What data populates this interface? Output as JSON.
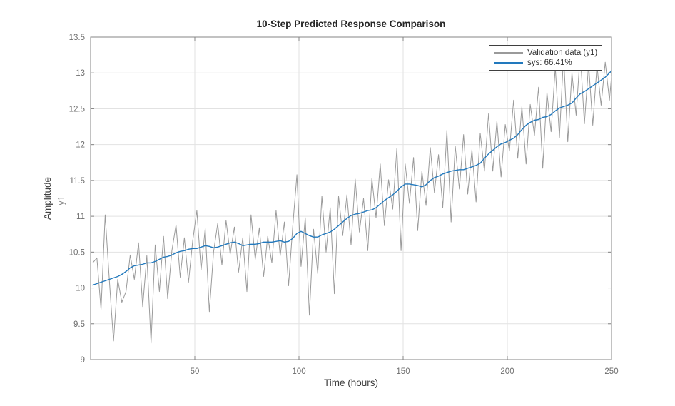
{
  "figure": {
    "title": "10-Step Predicted Response Comparison",
    "xlabel": "Time (hours)",
    "ylabel": "Amplitude",
    "channel": "y1"
  },
  "colors": {
    "validation_line": "#9a9a9a",
    "sys_line": "#2279bd",
    "grid": "#e2e2e2",
    "axis_border": "#848484",
    "tick_label": "#6e6e6e",
    "legend_border": "#3f3f3f",
    "background": "#ffffff"
  },
  "chart_data": {
    "type": "line",
    "title": "10-Step Predicted Response Comparison",
    "xlabel": "Time (hours)",
    "ylabel": "Amplitude",
    "channel": "y1",
    "xlim": [
      0,
      250
    ],
    "ylim": [
      9,
      13.5
    ],
    "xticks": [
      50,
      100,
      150,
      200,
      250
    ],
    "yticks": [
      9,
      9.5,
      10,
      10.5,
      11,
      11.5,
      12,
      12.5,
      13,
      13.5
    ],
    "grid": true,
    "legend_position": "top-right",
    "x": [
      1,
      3,
      5,
      7,
      9,
      11,
      13,
      15,
      17,
      19,
      21,
      23,
      25,
      27,
      29,
      31,
      33,
      35,
      37,
      39,
      41,
      43,
      45,
      47,
      49,
      51,
      53,
      55,
      57,
      59,
      61,
      63,
      65,
      67,
      69,
      71,
      73,
      75,
      77,
      79,
      81,
      83,
      85,
      87,
      89,
      91,
      93,
      95,
      97,
      99,
      101,
      103,
      105,
      107,
      109,
      111,
      113,
      115,
      117,
      119,
      121,
      123,
      125,
      127,
      129,
      131,
      133,
      135,
      137,
      139,
      141,
      143,
      145,
      147,
      149,
      151,
      153,
      155,
      157,
      159,
      161,
      163,
      165,
      167,
      169,
      171,
      173,
      175,
      177,
      179,
      181,
      183,
      185,
      187,
      189,
      191,
      193,
      195,
      197,
      199,
      201,
      203,
      205,
      207,
      209,
      211,
      213,
      215,
      217,
      219,
      221,
      223,
      225,
      227,
      229,
      231,
      233,
      235,
      237,
      239,
      241,
      243,
      245,
      247,
      249,
      250
    ],
    "series": [
      {
        "name": "Validation data (y1)",
        "color": "#9a9a9a",
        "width": 1,
        "values": [
          10.35,
          10.42,
          9.7,
          11.02,
          10.1,
          9.26,
          10.12,
          9.8,
          9.95,
          10.46,
          10.12,
          10.63,
          9.74,
          10.45,
          9.23,
          10.6,
          9.95,
          10.72,
          9.85,
          10.52,
          10.88,
          10.15,
          10.7,
          10.08,
          10.66,
          11.08,
          10.25,
          10.83,
          9.67,
          10.5,
          10.9,
          10.32,
          10.94,
          10.47,
          10.85,
          10.22,
          10.7,
          9.95,
          11.02,
          10.4,
          10.84,
          10.16,
          10.72,
          10.35,
          11.08,
          10.45,
          10.92,
          10.03,
          10.85,
          11.58,
          10.3,
          10.98,
          9.62,
          10.82,
          10.2,
          11.28,
          10.5,
          11.12,
          9.92,
          11.28,
          10.73,
          11.3,
          10.6,
          11.52,
          10.78,
          11.25,
          10.52,
          11.53,
          10.98,
          11.73,
          10.87,
          11.51,
          11.1,
          11.95,
          10.52,
          11.73,
          11.18,
          11.82,
          10.8,
          11.63,
          11.15,
          11.96,
          11.33,
          11.86,
          11.12,
          12.2,
          10.92,
          11.98,
          11.38,
          12.14,
          11.31,
          11.93,
          11.2,
          12.16,
          11.63,
          12.43,
          11.63,
          12.33,
          11.55,
          12.28,
          11.91,
          12.62,
          11.81,
          12.53,
          11.73,
          12.56,
          12.13,
          12.8,
          11.67,
          12.73,
          12.18,
          13.08,
          12.1,
          13.25,
          12.04,
          13.0,
          12.41,
          13.28,
          12.29,
          13.12,
          12.27,
          13.1,
          12.55,
          13.15,
          12.62,
          12.95
        ]
      },
      {
        "name": "sys: 66.41%",
        "fit_percent": 66.41,
        "color": "#2279bd",
        "width": 1.4,
        "values": [
          10.04,
          10.06,
          10.08,
          10.1,
          10.12,
          10.14,
          10.16,
          10.19,
          10.23,
          10.28,
          10.31,
          10.32,
          10.33,
          10.35,
          10.35,
          10.37,
          10.4,
          10.43,
          10.44,
          10.46,
          10.49,
          10.51,
          10.52,
          10.54,
          10.55,
          10.55,
          10.57,
          10.59,
          10.58,
          10.56,
          10.57,
          10.59,
          10.61,
          10.63,
          10.64,
          10.62,
          10.59,
          10.6,
          10.61,
          10.61,
          10.62,
          10.64,
          10.64,
          10.64,
          10.65,
          10.66,
          10.64,
          10.65,
          10.69,
          10.76,
          10.79,
          10.76,
          10.73,
          10.71,
          10.71,
          10.74,
          10.76,
          10.78,
          10.82,
          10.87,
          10.92,
          10.97,
          11.01,
          11.03,
          11.04,
          11.06,
          11.08,
          11.09,
          11.12,
          11.17,
          11.22,
          11.26,
          11.3,
          11.35,
          11.41,
          11.45,
          11.45,
          11.44,
          11.43,
          11.41,
          11.44,
          11.5,
          11.54,
          11.56,
          11.59,
          11.61,
          11.63,
          11.64,
          11.65,
          11.65,
          11.67,
          11.69,
          11.71,
          11.74,
          11.81,
          11.87,
          11.92,
          11.97,
          12.01,
          12.03,
          12.06,
          12.09,
          12.14,
          12.21,
          12.27,
          12.31,
          12.34,
          12.35,
          12.38,
          12.39,
          12.42,
          12.47,
          12.51,
          12.53,
          12.55,
          12.58,
          12.65,
          12.71,
          12.74,
          12.78,
          12.82,
          12.86,
          12.9,
          12.94,
          13.0,
          13.03
        ]
      }
    ]
  }
}
